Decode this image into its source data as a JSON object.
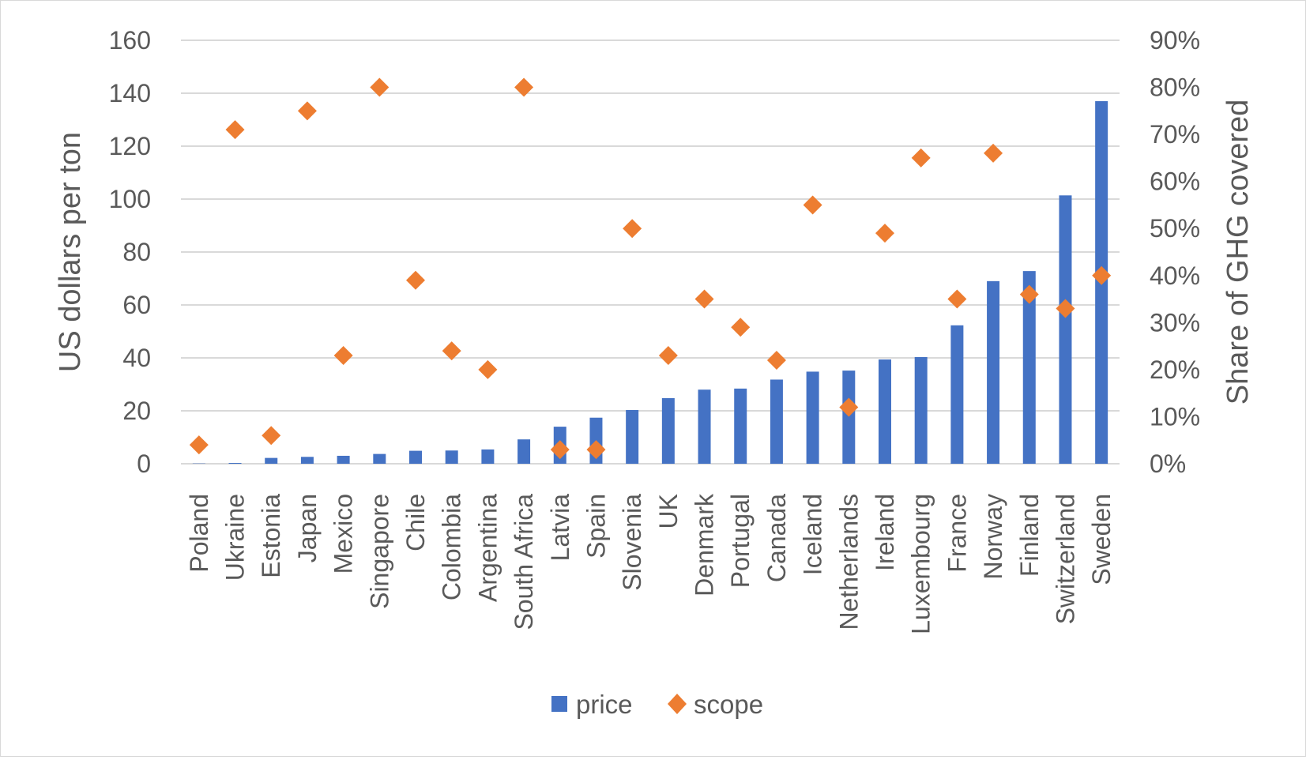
{
  "chart_data": {
    "type": "bar",
    "categories": [
      "Poland",
      "Ukraine",
      "Estonia",
      "Japan",
      "Mexico",
      "Singapore",
      "Chile",
      "Colombia",
      "Argentina",
      "South Africa",
      "Latvia",
      "Spain",
      "Slovenia",
      "UK",
      "Denmark",
      "Portugal",
      "Canada",
      "Iceland",
      "Netherlands",
      "Ireland",
      "Luxembourg",
      "France",
      "Norway",
      "Finland",
      "Switzerland",
      "Sweden"
    ],
    "series": [
      {
        "name": "price",
        "type": "bar",
        "axis": "left",
        "color": "#4472C4",
        "values": [
          0.1,
          0.3,
          2.2,
          2.6,
          3.0,
          3.7,
          4.9,
          5.0,
          5.4,
          9.2,
          14.0,
          17.4,
          20.3,
          24.8,
          28.0,
          28.4,
          31.8,
          34.8,
          35.2,
          39.4,
          40.3,
          52.3,
          69.0,
          72.8,
          101.4,
          137.0
        ]
      },
      {
        "name": "scope",
        "type": "scatter",
        "marker": "diamond",
        "axis": "right",
        "color": "#ED7D31",
        "values": [
          0.04,
          0.71,
          0.06,
          0.75,
          0.23,
          0.8,
          0.39,
          0.24,
          0.2,
          0.8,
          0.03,
          0.03,
          0.5,
          0.23,
          0.35,
          0.29,
          0.22,
          0.55,
          0.12,
          0.49,
          0.65,
          0.35,
          0.66,
          0.36,
          0.33,
          0.4
        ]
      }
    ],
    "ylabel": "US dollars per ton",
    "ylim": [
      0,
      160
    ],
    "yticks": [
      "0",
      "20",
      "40",
      "60",
      "80",
      "100",
      "120",
      "140",
      "160"
    ],
    "y2label": "Share of GHG covered",
    "y2lim": [
      0,
      0.9
    ],
    "y2ticks": [
      "0%",
      "10%",
      "20%",
      "30%",
      "40%",
      "50%",
      "60%",
      "70%",
      "80%",
      "90%"
    ],
    "grid": true,
    "legend": "bottom"
  }
}
